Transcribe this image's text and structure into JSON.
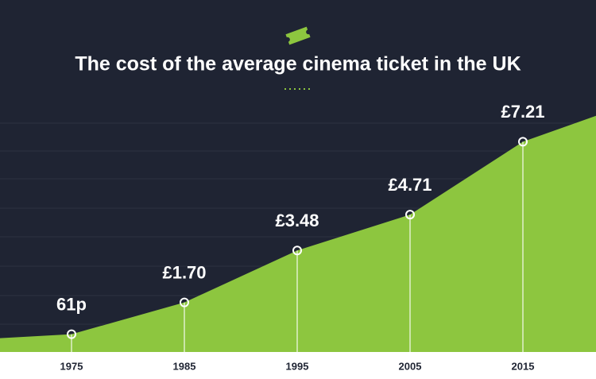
{
  "chart_data": {
    "type": "area",
    "title": "The cost of the average cinema ticket in the UK",
    "categories": [
      "1975",
      "1985",
      "1995",
      "2005",
      "2015"
    ],
    "values": [
      0.61,
      1.7,
      3.48,
      4.71,
      7.21
    ],
    "value_labels": [
      "61p",
      "£1.70",
      "£3.48",
      "£4.71",
      "£7.21"
    ],
    "color": "#8dc63f"
  }
}
